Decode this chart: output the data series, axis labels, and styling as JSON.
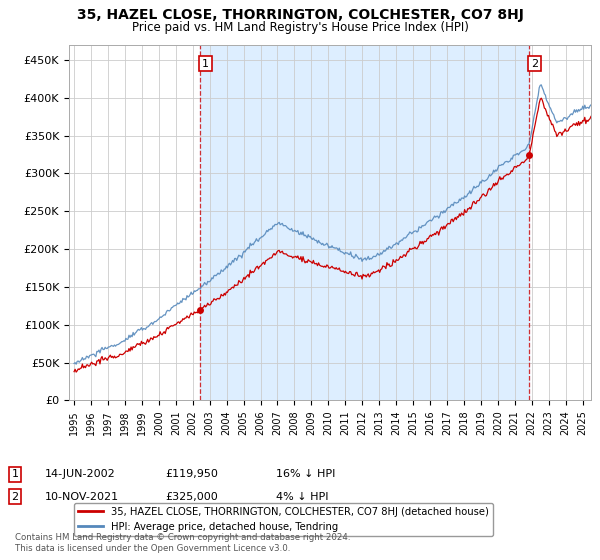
{
  "title": "35, HAZEL CLOSE, THORRINGTON, COLCHESTER, CO7 8HJ",
  "subtitle": "Price paid vs. HM Land Registry's House Price Index (HPI)",
  "legend_label_red": "35, HAZEL CLOSE, THORRINGTON, COLCHESTER, CO7 8HJ (detached house)",
  "legend_label_blue": "HPI: Average price, detached house, Tendring",
  "annotation1_label": "1",
  "annotation1_date": "14-JUN-2002",
  "annotation1_price": "£119,950",
  "annotation1_hpi": "16% ↓ HPI",
  "annotation2_label": "2",
  "annotation2_date": "10-NOV-2021",
  "annotation2_price": "£325,000",
  "annotation2_hpi": "4% ↓ HPI",
  "footer": "Contains HM Land Registry data © Crown copyright and database right 2024.\nThis data is licensed under the Open Government Licence v3.0.",
  "ylim": [
    0,
    470000
  ],
  "yticks": [
    0,
    50000,
    100000,
    150000,
    200000,
    250000,
    300000,
    350000,
    400000,
    450000
  ],
  "ytick_labels": [
    "£0",
    "£50K",
    "£100K",
    "£150K",
    "£200K",
    "£250K",
    "£300K",
    "£350K",
    "£400K",
    "£450K"
  ],
  "red_color": "#cc0000",
  "blue_color": "#5588bb",
  "highlight_color": "#ddeeff",
  "bg_color": "#ffffff",
  "grid_color": "#cccccc",
  "sale1_year": 2002.45,
  "sale1_price": 119950,
  "sale2_year": 2021.86,
  "sale2_price": 325000,
  "xlim_left": 1994.7,
  "xlim_right": 2025.5
}
